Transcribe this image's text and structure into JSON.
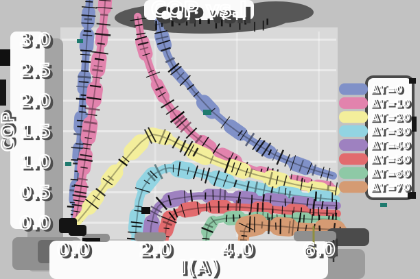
{
  "figure": {
    "background": "#c2c2c2",
    "plot_background": "#d9d9d9",
    "label_band_color": "#fbfbfb",
    "band_shadow_color": "#9e9e9e",
    "dark_shadow_color": "#4b4b4b",
    "text_outline_color": "#ffffff",
    "text_shadow_color": "#4d4d4d"
  },
  "chart_data": {
    "type": "line",
    "title": "COP vs.I",
    "xlabel": "I(A)",
    "ylabel": "COP",
    "xlim": [
      -0.2,
      6.8
    ],
    "ylim": [
      -0.3,
      3.4
    ],
    "grid": true,
    "legend_position": "right",
    "x_ticks": [
      "0.0",
      "2.0",
      "4.0",
      "6.0"
    ],
    "x_tick_values": [
      0,
      2,
      4,
      6
    ],
    "y_ticks": [
      "0.0",
      "0.5",
      "1.0",
      "1.5",
      "2.0",
      "2.5",
      "3.0"
    ],
    "y_tick_values": [
      0,
      0.5,
      1.0,
      1.5,
      2.0,
      2.5,
      3.0
    ],
    "series": [
      {
        "name": "ΔT=0",
        "color": "#8091c8",
        "width": 11,
        "segments": [
          [
            [
              0.03,
              0.0
            ],
            [
              0.08,
              0.5
            ],
            [
              0.14,
              1.1
            ],
            [
              0.2,
              1.7
            ],
            [
              0.26,
              2.3
            ],
            [
              0.32,
              2.9
            ],
            [
              0.36,
              3.35
            ],
            [
              0.4,
              3.68
            ]
          ],
          [
            [
              2.08,
              3.3
            ],
            [
              2.18,
              3.0
            ],
            [
              2.3,
              2.75
            ],
            [
              2.45,
              2.55
            ],
            [
              2.6,
              2.42
            ],
            [
              2.78,
              2.3
            ],
            [
              2.95,
              2.15
            ],
            [
              3.15,
              2.0
            ],
            [
              3.4,
              1.82
            ],
            [
              3.7,
              1.65
            ],
            [
              4.0,
              1.5
            ],
            [
              4.3,
              1.37
            ],
            [
              4.6,
              1.24
            ],
            [
              4.9,
              1.12
            ],
            [
              5.2,
              1.03
            ],
            [
              5.5,
              0.95
            ],
            [
              5.8,
              0.88
            ],
            [
              6.1,
              0.82
            ],
            [
              6.35,
              0.77
            ]
          ]
        ]
      },
      {
        "name": "ΔT=10",
        "color": "#e283ad",
        "width": 11,
        "segments": [
          [
            [
              0.05,
              0.0
            ],
            [
              0.18,
              0.55
            ],
            [
              0.32,
              1.2
            ],
            [
              0.46,
              1.85
            ],
            [
              0.58,
              2.45
            ],
            [
              0.68,
              2.95
            ],
            [
              0.75,
              3.4
            ],
            [
              0.78,
              3.68
            ]
          ],
          [
            [
              1.57,
              3.38
            ],
            [
              1.65,
              3.05
            ],
            [
              1.75,
              2.8
            ],
            [
              1.87,
              2.55
            ],
            [
              2.0,
              2.33
            ],
            [
              2.15,
              2.12
            ],
            [
              2.32,
              1.93
            ],
            [
              2.5,
              1.76
            ],
            [
              2.7,
              1.6
            ],
            [
              2.9,
              1.46
            ],
            [
              3.15,
              1.32
            ],
            [
              3.4,
              1.2
            ],
            [
              3.7,
              1.08
            ],
            [
              4.0,
              0.98
            ],
            [
              4.3,
              0.89
            ],
            [
              4.6,
              0.82
            ],
            [
              4.9,
              0.76
            ],
            [
              5.2,
              0.7
            ],
            [
              5.5,
              0.66
            ],
            [
              5.8,
              0.62
            ],
            [
              6.1,
              0.58
            ],
            [
              6.35,
              0.56
            ]
          ]
        ]
      },
      {
        "name": "ΔT=20",
        "color": "#f3ee9b",
        "width": 12,
        "segments": [
          [
            [
              0.1,
              0.02
            ],
            [
              0.35,
              0.22
            ],
            [
              0.6,
              0.45
            ],
            [
              0.85,
              0.68
            ],
            [
              1.05,
              0.85
            ],
            [
              1.25,
              1.02
            ],
            [
              1.45,
              1.18
            ],
            [
              1.65,
              1.32
            ],
            [
              1.82,
              1.41
            ],
            [
              1.95,
              1.45
            ],
            [
              2.15,
              1.42
            ],
            [
              2.4,
              1.35
            ],
            [
              2.7,
              1.25
            ],
            [
              3.0,
              1.15
            ],
            [
              3.3,
              1.06
            ],
            [
              3.6,
              0.98
            ],
            [
              3.9,
              0.91
            ],
            [
              4.2,
              0.84
            ],
            [
              4.5,
              0.78
            ],
            [
              4.8,
              0.73
            ],
            [
              5.1,
              0.68
            ],
            [
              5.4,
              0.63
            ],
            [
              5.7,
              0.59
            ],
            [
              6.0,
              0.56
            ],
            [
              6.3,
              0.53
            ],
            [
              6.42,
              0.52
            ]
          ]
        ]
      },
      {
        "name": "ΔT=30",
        "color": "#92d4e2",
        "width": 12,
        "segments": [
          [
            [
              1.5,
              -0.38
            ],
            [
              1.54,
              0.0
            ],
            [
              1.6,
              0.35
            ],
            [
              1.7,
              0.57
            ],
            [
              1.85,
              0.72
            ],
            [
              2.0,
              0.81
            ],
            [
              2.2,
              0.88
            ],
            [
              2.35,
              0.9
            ],
            [
              2.6,
              0.88
            ],
            [
              2.9,
              0.84
            ],
            [
              3.2,
              0.79
            ],
            [
              3.5,
              0.73
            ],
            [
              3.8,
              0.67
            ],
            [
              4.1,
              0.62
            ],
            [
              4.4,
              0.57
            ],
            [
              4.7,
              0.53
            ],
            [
              5.0,
              0.49
            ],
            [
              5.3,
              0.46
            ],
            [
              5.6,
              0.43
            ],
            [
              5.9,
              0.41
            ],
            [
              6.2,
              0.39
            ],
            [
              6.42,
              0.38
            ]
          ]
        ]
      },
      {
        "name": "ΔT=40",
        "color": "#9e81c0",
        "width": 11,
        "segments": [
          [
            [
              1.85,
              -0.42
            ],
            [
              1.9,
              -0.05
            ],
            [
              1.97,
              0.15
            ],
            [
              2.07,
              0.27
            ],
            [
              2.2,
              0.34
            ],
            [
              2.45,
              0.39
            ],
            [
              2.75,
              0.42
            ],
            [
              3.05,
              0.44
            ],
            [
              3.35,
              0.44
            ],
            [
              3.65,
              0.43
            ],
            [
              3.95,
              0.42
            ],
            [
              4.25,
              0.4
            ],
            [
              4.55,
              0.38
            ],
            [
              4.85,
              0.36
            ],
            [
              5.15,
              0.34
            ],
            [
              5.45,
              0.32
            ],
            [
              5.75,
              0.3
            ],
            [
              6.05,
              0.29
            ],
            [
              6.45,
              0.28
            ]
          ]
        ]
      },
      {
        "name": "ΔT=50",
        "color": "#e26b6e",
        "width": 11,
        "segments": [
          [
            [
              2.22,
              -0.38
            ],
            [
              2.27,
              -0.05
            ],
            [
              2.35,
              0.08
            ],
            [
              2.5,
              0.16
            ],
            [
              2.75,
              0.21
            ],
            [
              3.05,
              0.24
            ],
            [
              3.35,
              0.26
            ],
            [
              3.65,
              0.26
            ],
            [
              3.95,
              0.26
            ],
            [
              4.25,
              0.25
            ],
            [
              4.55,
              0.23
            ],
            [
              4.85,
              0.22
            ],
            [
              5.15,
              0.2
            ],
            [
              5.45,
              0.19
            ],
            [
              5.75,
              0.17
            ],
            [
              6.05,
              0.16
            ],
            [
              6.45,
              0.15
            ]
          ]
        ]
      },
      {
        "name": "ΔT=60",
        "color": "#8ec9a6",
        "width": 10,
        "segments": [
          [
            [
              3.22,
              -0.42
            ],
            [
              3.27,
              -0.12
            ],
            [
              3.33,
              -0.02
            ],
            [
              3.45,
              0.04
            ],
            [
              3.7,
              0.07
            ],
            [
              4.0,
              0.08
            ],
            [
              4.3,
              0.09
            ],
            [
              4.6,
              0.09
            ],
            [
              4.9,
              0.08
            ],
            [
              5.2,
              0.08
            ],
            [
              5.5,
              0.07
            ],
            [
              5.8,
              0.06
            ],
            [
              6.1,
              0.06
            ],
            [
              6.45,
              0.05
            ]
          ]
        ]
      },
      {
        "name": "ΔT=70",
        "color": "#d59b73",
        "width": 16,
        "segments": [
          [
            [
              4.14,
              -0.42
            ],
            [
              4.18,
              -0.12
            ],
            [
              4.25,
              -0.02
            ],
            [
              4.5,
              -0.03
            ],
            [
              4.8,
              -0.05
            ],
            [
              5.1,
              -0.06
            ],
            [
              5.4,
              -0.08
            ],
            [
              5.7,
              -0.09
            ],
            [
              6.0,
              -0.1
            ],
            [
              6.3,
              -0.11
            ],
            [
              6.55,
              -0.12
            ]
          ]
        ]
      }
    ]
  }
}
